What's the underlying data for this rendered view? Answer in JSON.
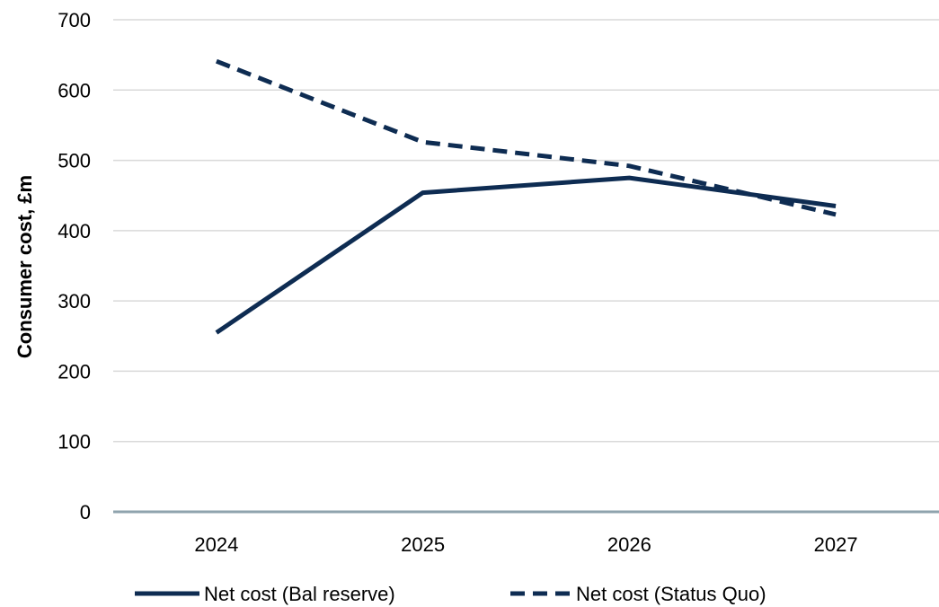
{
  "chart_data": {
    "type": "line",
    "title": "",
    "xlabel": "",
    "ylabel": "Consumer cost, £m",
    "categories": [
      "2024",
      "2025",
      "2026",
      "2027"
    ],
    "ylim": [
      0,
      700
    ],
    "yticks": [
      0,
      100,
      200,
      300,
      400,
      500,
      600,
      700
    ],
    "grid": true,
    "legend_position": "bottom",
    "series": [
      {
        "name": "Net cost (Bal reserve)",
        "values": [
          255,
          454,
          475,
          435
        ],
        "style": "solid",
        "color": "#0e2c52"
      },
      {
        "name": "Net cost (Status Quo)",
        "values": [
          641,
          526,
          492,
          423
        ],
        "style": "dashed",
        "color": "#0e2c52"
      }
    ],
    "colors": {
      "gridline": "#d9d9d9",
      "baseline": "#8fa3ad"
    }
  }
}
